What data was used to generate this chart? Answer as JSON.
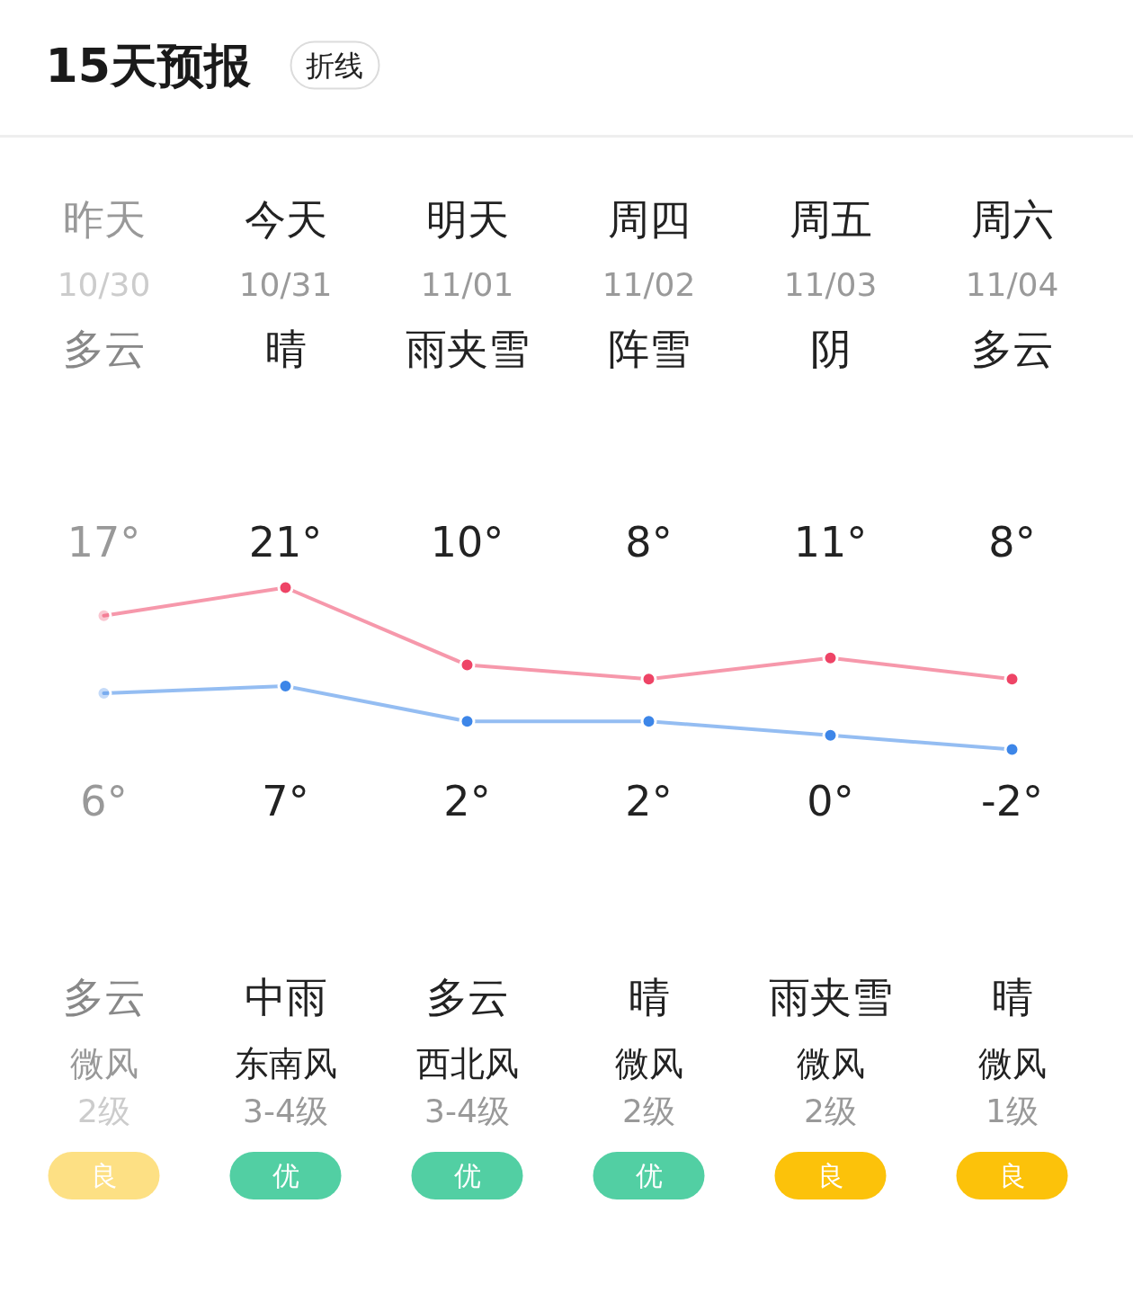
{
  "chart_data": {
    "type": "line",
    "title": "15天预报",
    "subtitle": "折线",
    "categories": [
      "昨天",
      "今天",
      "明天",
      "周四",
      "周五",
      "周六"
    ],
    "series": [
      {
        "color": "#ee4466",
        "values": [
          17,
          21,
          10,
          8,
          11,
          8
        ],
        "value_labels": [
          "17°",
          "21°",
          "10°",
          "8°",
          "11°",
          "8°"
        ]
      },
      {
        "color": "#3d86e8",
        "values": [
          6,
          7,
          2,
          2,
          0,
          -2
        ],
        "value_labels": [
          "6°",
          "7°",
          "2°",
          "2°",
          "0°",
          "-2°"
        ]
      }
    ],
    "annotations": [
      "10/30",
      "10/31",
      "11/01",
      "11/02",
      "11/03",
      "11/04",
      "多云",
      "晴",
      "雨夹雪",
      "阵雪",
      "阴",
      "多云",
      "多云",
      "中雨",
      "多云",
      "晴",
      "雨夹雪",
      "晴",
      "微风",
      "东南风",
      "西北风",
      "微风",
      "微风",
      "微风",
      "2级",
      "3-4级",
      "3-4级",
      "2级",
      "2级",
      "1级",
      "良",
      "优",
      "优",
      "优",
      "良",
      "良"
    ],
    "marker": "circle",
    "line_style": "solid",
    "tick_labels": "x"
  }
}
